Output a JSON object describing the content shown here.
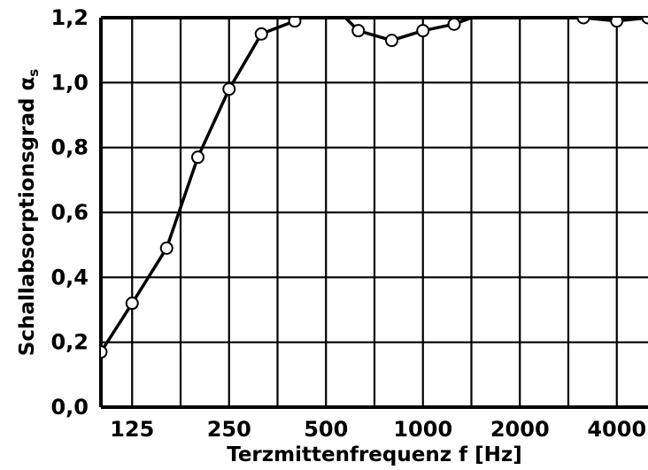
{
  "chart_data": {
    "type": "line",
    "xlabel": "Terzmittenfrequenz f [Hz]",
    "ylabel_main": "Schallabsorptionsgrad α",
    "ylabel_sub": "s",
    "x_scale": "log",
    "x_ticks": [
      125,
      250,
      500,
      1000,
      2000,
      4000
    ],
    "xlim": [
      100,
      5000
    ],
    "y_ticks": [
      "0,0",
      "0,2",
      "0,4",
      "0,6",
      "0,8",
      "1,0",
      "1,2"
    ],
    "ylim": [
      0,
      1.2
    ],
    "grid": true,
    "series": [
      {
        "color": "#000000",
        "x": [
          100,
          125,
          160,
          200,
          250,
          315,
          400,
          500,
          630,
          800,
          1000,
          1250,
          1600,
          2000,
          2500,
          3150,
          4000,
          5000
        ],
        "y": [
          0.17,
          0.32,
          0.49,
          0.77,
          0.98,
          1.15,
          1.19,
          1.26,
          1.16,
          1.13,
          1.16,
          1.18,
          1.22,
          1.25,
          1.24,
          1.2,
          1.19,
          1.2
        ]
      }
    ]
  }
}
